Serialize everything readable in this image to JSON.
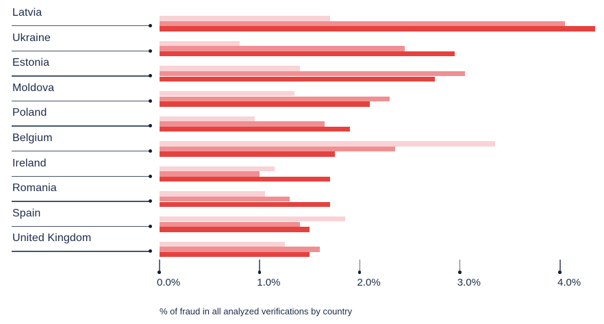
{
  "chart_data": {
    "type": "bar",
    "orientation": "horizontal",
    "caption": "% of fraud in all analyzed verifications by country",
    "categories": [
      "Latvia",
      "Ukraine",
      "Estonia",
      "Moldova",
      "Poland",
      "Belgium",
      "Ireland",
      "Romania",
      "Spain",
      "United Kingdom"
    ],
    "series": [
      {
        "name": "light-pink-bar",
        "color": "#f8d3d6",
        "values": [
          1.7,
          0.8,
          1.4,
          1.35,
          0.95,
          3.35,
          1.15,
          1.05,
          1.85,
          1.25
        ]
      },
      {
        "name": "medium-pink-bar",
        "color": "#f08f92",
        "values": [
          4.05,
          2.45,
          3.05,
          2.3,
          1.65,
          2.35,
          1.0,
          1.3,
          1.4,
          1.6
        ]
      },
      {
        "name": "red-bar",
        "color": "#e5423f",
        "values": [
          4.35,
          2.95,
          2.75,
          2.1,
          1.9,
          1.75,
          1.7,
          1.7,
          1.5,
          1.5
        ]
      }
    ],
    "x_ticks": {
      "labels": [
        "0.0%",
        "1.0%",
        "2.0%",
        "3.0%",
        "4.0%"
      ],
      "values": [
        0,
        1,
        2,
        3,
        4
      ]
    },
    "xlim": [
      0,
      4.45
    ],
    "grid": false,
    "legend": false
  },
  "colors": {
    "label_text": "#1b2a49",
    "leader_line": "#45546b",
    "dot": "#101e39",
    "bar_light": "#f8d3d6",
    "bar_medium": "#f08f92",
    "bar_dark": "#e5423f"
  }
}
